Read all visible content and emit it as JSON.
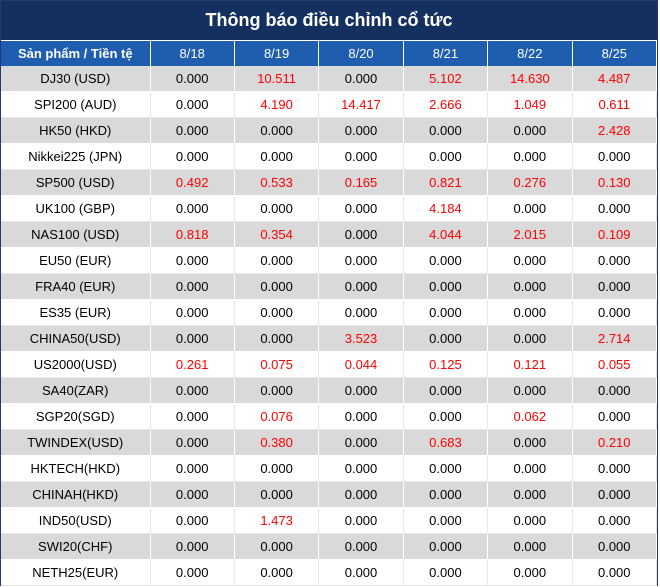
{
  "title": "Thông báo điều chỉnh cổ tức",
  "colors": {
    "header_bg": "#13305f",
    "col_header_bg": "#1f5dae",
    "stripe": "#d9d9d9",
    "highlight": "#ff0000"
  },
  "columns": [
    "Sản phẩm / Tiền tệ",
    "8/18",
    "8/19",
    "8/20",
    "8/21",
    "8/22",
    "8/25"
  ],
  "rows": [
    {
      "product": "DJ30 (USD)",
      "values": [
        "0.000",
        "10.511",
        "0.000",
        "5.102",
        "14.630",
        "4.487"
      ]
    },
    {
      "product": "SPI200 (AUD)",
      "values": [
        "0.000",
        "4.190",
        "14.417",
        "2.666",
        "1.049",
        "0.611"
      ]
    },
    {
      "product": "HK50 (HKD)",
      "values": [
        "0.000",
        "0.000",
        "0.000",
        "0.000",
        "0.000",
        "2.428"
      ]
    },
    {
      "product": "Nikkei225 (JPN)",
      "values": [
        "0.000",
        "0.000",
        "0.000",
        "0.000",
        "0.000",
        "0.000"
      ]
    },
    {
      "product": "SP500 (USD)",
      "values": [
        "0.492",
        "0.533",
        "0.165",
        "0.821",
        "0.276",
        "0.130"
      ]
    },
    {
      "product": "UK100 (GBP)",
      "values": [
        "0.000",
        "0.000",
        "0.000",
        "4.184",
        "0.000",
        "0.000"
      ]
    },
    {
      "product": "NAS100 (USD)",
      "values": [
        "0.818",
        "0.354",
        "0.000",
        "4.044",
        "2.015",
        "0.109"
      ]
    },
    {
      "product": "EU50 (EUR)",
      "values": [
        "0.000",
        "0.000",
        "0.000",
        "0.000",
        "0.000",
        "0.000"
      ]
    },
    {
      "product": "FRA40 (EUR)",
      "values": [
        "0.000",
        "0.000",
        "0.000",
        "0.000",
        "0.000",
        "0.000"
      ]
    },
    {
      "product": "ES35 (EUR)",
      "values": [
        "0.000",
        "0.000",
        "0.000",
        "0.000",
        "0.000",
        "0.000"
      ]
    },
    {
      "product": "CHINA50(USD)",
      "values": [
        "0.000",
        "0.000",
        "3.523",
        "0.000",
        "0.000",
        "2.714"
      ]
    },
    {
      "product": "US2000(USD)",
      "values": [
        "0.261",
        "0.075",
        "0.044",
        "0.125",
        "0.121",
        "0.055"
      ]
    },
    {
      "product": "SA40(ZAR)",
      "values": [
        "0.000",
        "0.000",
        "0.000",
        "0.000",
        "0.000",
        "0.000"
      ]
    },
    {
      "product": "SGP20(SGD)",
      "values": [
        "0.000",
        "0.076",
        "0.000",
        "0.000",
        "0.062",
        "0.000"
      ]
    },
    {
      "product": "TWINDEX(USD)",
      "values": [
        "0.000",
        "0.380",
        "0.000",
        "0.683",
        "0.000",
        "0.210"
      ]
    },
    {
      "product": "HKTECH(HKD)",
      "values": [
        "0.000",
        "0.000",
        "0.000",
        "0.000",
        "0.000",
        "0.000"
      ]
    },
    {
      "product": "CHINAH(HKD)",
      "values": [
        "0.000",
        "0.000",
        "0.000",
        "0.000",
        "0.000",
        "0.000"
      ]
    },
    {
      "product": "IND50(USD)",
      "values": [
        "0.000",
        "1.473",
        "0.000",
        "0.000",
        "0.000",
        "0.000"
      ]
    },
    {
      "product": "SWI20(CHF)",
      "values": [
        "0.000",
        "0.000",
        "0.000",
        "0.000",
        "0.000",
        "0.000"
      ]
    },
    {
      "product": "NETH25(EUR)",
      "values": [
        "0.000",
        "0.000",
        "0.000",
        "0.000",
        "0.000",
        "0.000"
      ]
    }
  ]
}
